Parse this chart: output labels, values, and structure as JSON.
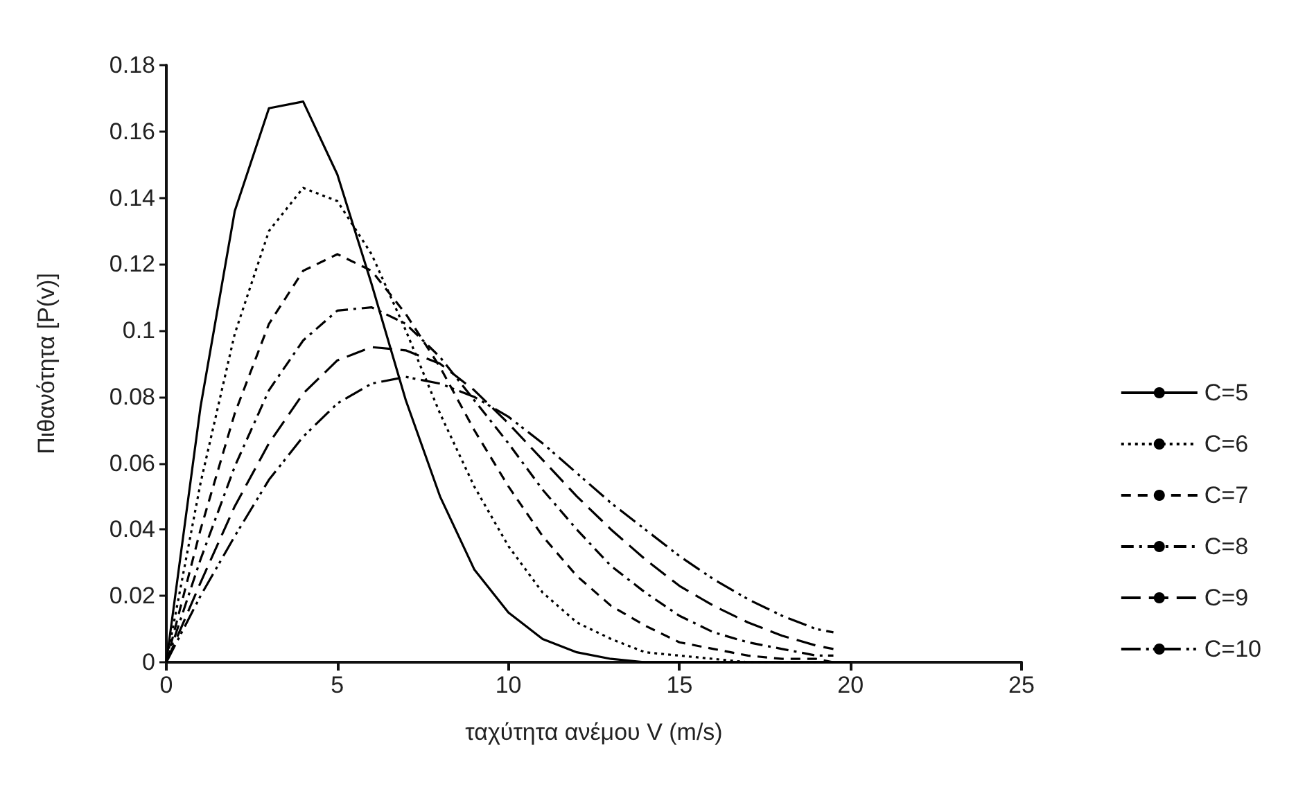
{
  "chart_data": {
    "type": "line",
    "xlabel": "ταχύτητα ανέμου V (m/s)",
    "ylabel": "Πιθανότητα [P(v)]",
    "series": [
      {
        "name": "C=5",
        "color": "#000000",
        "line_style": "solid",
        "x": [
          0,
          1,
          2,
          3,
          4,
          5,
          6,
          7,
          8,
          9,
          10,
          11,
          12,
          13,
          14,
          15,
          16,
          17,
          18,
          19,
          20
        ],
        "values": [
          0,
          0.077,
          0.136,
          0.167,
          0.169,
          0.147,
          0.114,
          0.079,
          0.05,
          0.028,
          0.015,
          0.007,
          0.003,
          0.001,
          0,
          0,
          0,
          0,
          0,
          0,
          0
        ]
      },
      {
        "name": "C=6",
        "color": "#000000",
        "line_style": "dotted",
        "x": [
          0,
          1,
          2,
          3,
          4,
          5,
          6,
          7,
          8,
          9,
          10,
          11,
          12,
          13,
          14,
          15,
          16,
          17,
          18,
          19,
          19.5
        ],
        "values": [
          0,
          0.054,
          0.099,
          0.13,
          0.143,
          0.139,
          0.123,
          0.1,
          0.075,
          0.053,
          0.035,
          0.021,
          0.012,
          0.007,
          0.003,
          0.002,
          0.001,
          0,
          0,
          0,
          0
        ]
      },
      {
        "name": "C=7",
        "color": "#000000",
        "line_style": "dashed",
        "x": [
          0,
          1,
          2,
          3,
          4,
          5,
          6,
          7,
          8,
          9,
          10,
          11,
          12,
          13,
          14,
          15,
          16,
          17,
          18,
          19,
          19.5
        ],
        "values": [
          0,
          0.04,
          0.075,
          0.102,
          0.118,
          0.123,
          0.118,
          0.105,
          0.089,
          0.07,
          0.053,
          0.038,
          0.026,
          0.017,
          0.011,
          0.006,
          0.004,
          0.002,
          0.001,
          0.001,
          0
        ]
      },
      {
        "name": "C=8",
        "color": "#000000",
        "line_style": "dashed",
        "x": [
          0,
          1,
          2,
          3,
          4,
          5,
          6,
          7,
          8,
          9,
          10,
          11,
          12,
          13,
          14,
          15,
          16,
          17,
          18,
          19,
          19.5
        ],
        "values": [
          0,
          0.031,
          0.059,
          0.082,
          0.097,
          0.106,
          0.107,
          0.102,
          0.092,
          0.079,
          0.066,
          0.052,
          0.04,
          0.029,
          0.021,
          0.014,
          0.009,
          0.006,
          0.004,
          0.002,
          0.002
        ]
      },
      {
        "name": "C=9",
        "color": "#000000",
        "line_style": "dashed",
        "x": [
          0,
          1,
          2,
          3,
          4,
          5,
          6,
          7,
          8,
          9,
          10,
          11,
          12,
          13,
          14,
          15,
          16,
          17,
          18,
          19,
          19.5
        ],
        "values": [
          0,
          0.024,
          0.047,
          0.066,
          0.081,
          0.091,
          0.095,
          0.094,
          0.09,
          0.082,
          0.072,
          0.061,
          0.05,
          0.04,
          0.031,
          0.023,
          0.017,
          0.012,
          0.008,
          0.005,
          0.004
        ]
      },
      {
        "name": "C=10",
        "color": "#000000",
        "line_style": "dashed",
        "x": [
          0,
          1,
          2,
          3,
          4,
          5,
          6,
          7,
          8,
          9,
          10,
          11,
          12,
          13,
          14,
          15,
          16,
          17,
          18,
          19,
          19.5
        ],
        "values": [
          0,
          0.02,
          0.038,
          0.055,
          0.068,
          0.078,
          0.084,
          0.086,
          0.084,
          0.08,
          0.074,
          0.066,
          0.057,
          0.048,
          0.04,
          0.032,
          0.025,
          0.019,
          0.014,
          0.01,
          0.009
        ]
      }
    ],
    "xlim": [
      0,
      25
    ],
    "xticks": [
      0,
      5,
      10,
      15,
      20,
      25
    ],
    "ylim": [
      0,
      0.18
    ],
    "yticks": [
      0,
      0.02,
      0.04,
      0.06,
      0.08,
      0.1,
      0.12,
      0.14,
      0.16,
      0.18
    ],
    "grid": false,
    "legend": "right",
    "marker": "none"
  }
}
